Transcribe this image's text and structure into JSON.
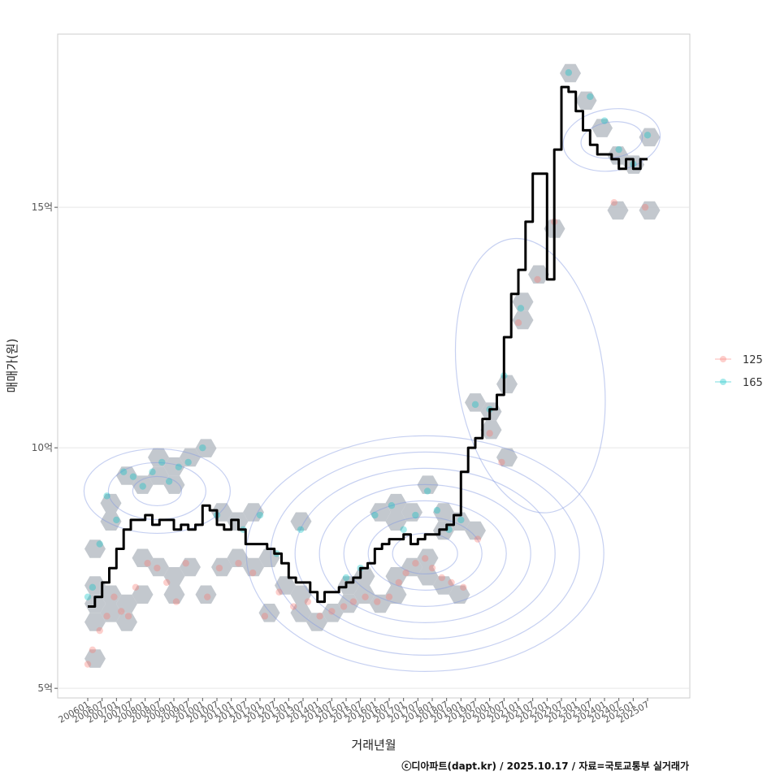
{
  "chart_data": {
    "type": "line",
    "title": "",
    "xlabel": "거래년월",
    "ylabel": "매매가(원)",
    "caption": "ⓒ디아파트(dapt.kr) / 2025.10.17 / 자료=국토교통부 실거래가",
    "y_unit": "억",
    "ylim": [
      4.8,
      18.6
    ],
    "y_ticks": [
      5,
      10,
      15
    ],
    "y_tick_labels": [
      "5억",
      "10억",
      "15억"
    ],
    "x_range": [
      "2006-01",
      "2025-07"
    ],
    "x_tick_labels": [
      "200601",
      "200607",
      "200701",
      "200707",
      "200801",
      "200807",
      "200901",
      "200907",
      "201001",
      "201007",
      "201101",
      "201107",
      "201201",
      "201207",
      "201301",
      "201307",
      "201401",
      "201407",
      "201501",
      "201507",
      "201601",
      "201607",
      "201701",
      "201707",
      "201801",
      "201807",
      "201901",
      "201907",
      "202001",
      "202007",
      "202101",
      "202107",
      "202201",
      "202207",
      "202301",
      "202307",
      "202401",
      "202407",
      "202501",
      "202507"
    ],
    "grid": true,
    "legend": {
      "position": "right",
      "entries": [
        {
          "name": "125",
          "color": "#F8766D"
        },
        {
          "name": "165",
          "color": "#00BFC4"
        }
      ]
    },
    "series": [
      {
        "name": "median",
        "color": "#000000",
        "x": [
          "2006-01",
          "2006-04",
          "2006-07",
          "2006-10",
          "2007-01",
          "2007-04",
          "2007-07",
          "2007-10",
          "2008-01",
          "2008-04",
          "2008-07",
          "2008-10",
          "2009-01",
          "2009-04",
          "2009-07",
          "2009-10",
          "2010-01",
          "2010-04",
          "2010-07",
          "2010-10",
          "2011-01",
          "2011-04",
          "2011-07",
          "2011-10",
          "2012-01",
          "2012-04",
          "2012-07",
          "2012-10",
          "2013-01",
          "2013-04",
          "2013-07",
          "2013-10",
          "2014-01",
          "2014-04",
          "2014-07",
          "2014-10",
          "2015-01",
          "2015-04",
          "2015-07",
          "2015-10",
          "2016-01",
          "2016-04",
          "2016-07",
          "2016-10",
          "2017-01",
          "2017-04",
          "2017-07",
          "2017-10",
          "2018-01",
          "2018-04",
          "2018-07",
          "2018-10",
          "2019-01",
          "2019-04",
          "2019-07",
          "2019-10",
          "2020-01",
          "2020-04",
          "2020-07",
          "2020-10",
          "2021-01",
          "2021-04",
          "2021-07",
          "2021-10",
          "2022-01",
          "2022-04",
          "2022-07",
          "2022-10",
          "2023-01",
          "2023-04",
          "2023-07",
          "2023-10",
          "2024-01",
          "2024-04",
          "2024-07",
          "2024-10",
          "2025-01",
          "2025-04",
          "2025-07"
        ],
        "values": [
          6.7,
          6.9,
          7.2,
          7.5,
          7.9,
          8.3,
          8.5,
          8.5,
          8.6,
          8.4,
          8.5,
          8.5,
          8.3,
          8.4,
          8.3,
          8.4,
          8.8,
          8.7,
          8.4,
          8.3,
          8.5,
          8.3,
          8.0,
          8.0,
          8.0,
          7.9,
          7.8,
          7.6,
          7.3,
          7.2,
          7.2,
          7.0,
          6.8,
          7.0,
          7.0,
          7.1,
          7.2,
          7.3,
          7.5,
          7.6,
          7.9,
          8.0,
          8.1,
          8.1,
          8.2,
          8.0,
          8.1,
          8.2,
          8.2,
          8.3,
          8.4,
          8.6,
          9.5,
          10.0,
          10.2,
          10.6,
          10.8,
          11.1,
          12.3,
          13.2,
          13.7,
          14.7,
          15.7,
          15.7,
          13.5,
          16.2,
          17.5,
          17.4,
          17.0,
          16.6,
          16.3,
          16.1,
          16.1,
          16.0,
          15.8,
          16.0,
          15.8,
          16.0,
          16.0
        ]
      },
      {
        "name": "125",
        "x": [
          "2006-01",
          "2006-03",
          "2006-06",
          "2006-09",
          "2006-12",
          "2007-03",
          "2007-06",
          "2007-09",
          "2008-02",
          "2008-06",
          "2008-10",
          "2009-02",
          "2009-06",
          "2010-03",
          "2010-08",
          "2011-04",
          "2011-10",
          "2012-03",
          "2012-09",
          "2013-03",
          "2013-09",
          "2014-02",
          "2014-07",
          "2014-12",
          "2015-04",
          "2015-09",
          "2016-02",
          "2016-07",
          "2016-11",
          "2017-02",
          "2017-06",
          "2017-10",
          "2018-01",
          "2018-05",
          "2018-09",
          "2019-02",
          "2019-08",
          "2020-01",
          "2020-06",
          "2021-01",
          "2021-09",
          "2022-04",
          "2024-05",
          "2025-06"
        ],
        "values": [
          5.5,
          5.8,
          6.2,
          6.5,
          6.9,
          6.6,
          6.5,
          7.1,
          7.6,
          7.5,
          7.2,
          6.8,
          7.6,
          6.9,
          7.5,
          7.6,
          7.4,
          6.5,
          7.0,
          6.7,
          6.8,
          6.5,
          6.6,
          6.7,
          6.8,
          6.9,
          6.8,
          6.9,
          7.2,
          7.4,
          7.6,
          7.7,
          7.5,
          7.3,
          7.2,
          7.1,
          8.1,
          10.3,
          9.7,
          12.6,
          13.5,
          14.7,
          15.1,
          15.0
        ]
      },
      {
        "name": "165",
        "x": [
          "2006-01",
          "2006-03",
          "2006-06",
          "2006-09",
          "2007-01",
          "2007-04",
          "2007-08",
          "2007-12",
          "2008-04",
          "2008-08",
          "2008-11",
          "2009-03",
          "2009-07",
          "2010-01",
          "2010-07",
          "2011-06",
          "2012-01",
          "2012-08",
          "2013-06",
          "2015-01",
          "2015-07",
          "2016-01",
          "2016-08",
          "2017-01",
          "2017-06",
          "2017-11",
          "2018-03",
          "2018-08",
          "2019-01",
          "2019-07",
          "2020-01",
          "2020-07",
          "2021-02",
          "2022-10",
          "2023-07",
          "2024-01",
          "2024-07",
          "2025-01",
          "2025-07"
        ],
        "values": [
          6.9,
          7.1,
          8.0,
          9.0,
          8.5,
          9.5,
          9.4,
          9.2,
          9.5,
          9.7,
          9.3,
          9.6,
          9.7,
          10.0,
          8.6,
          8.3,
          8.6,
          7.8,
          8.3,
          7.3,
          7.5,
          8.6,
          8.8,
          8.3,
          8.6,
          9.1,
          8.7,
          8.3,
          8.5,
          10.9,
          10.8,
          11.5,
          12.9,
          17.8,
          17.3,
          16.8,
          16.2,
          15.9,
          16.5
        ]
      }
    ]
  }
}
